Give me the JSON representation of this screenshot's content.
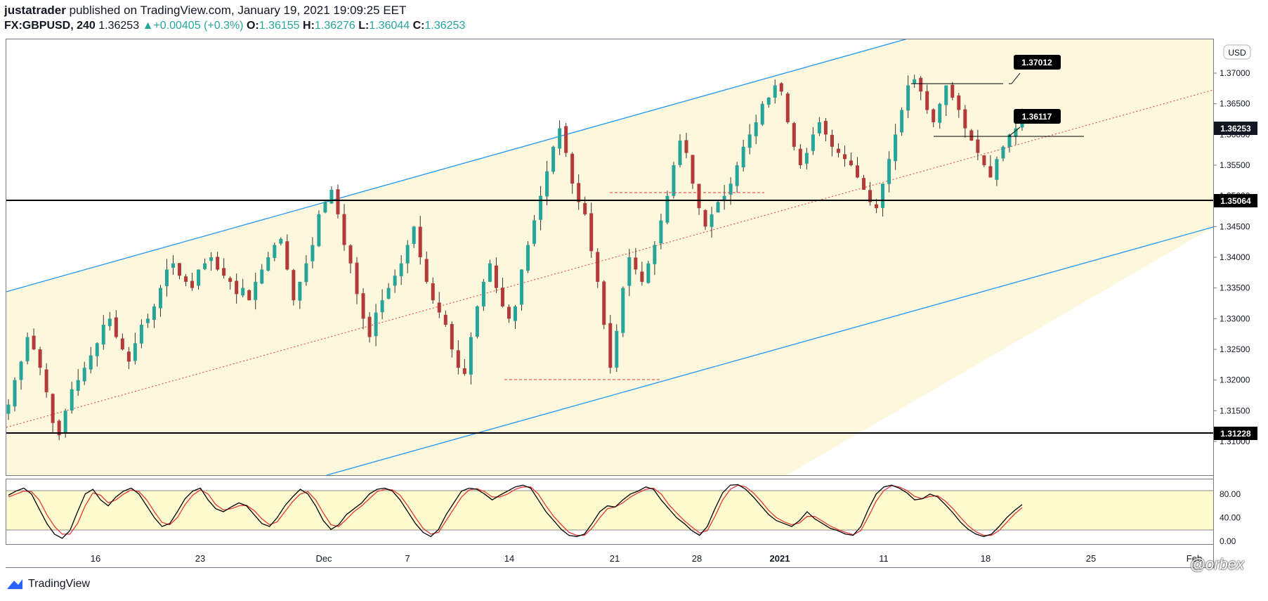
{
  "header": {
    "author": "justatrader",
    "published": "published on TradingView.com, January 19, 2021 19:09:25 EET",
    "symbol": "FX:GBPUSD, 240",
    "last": "1.36253",
    "change_arrow": "▲",
    "change": "+0.00405 (+0.3%)",
    "o_label": "O:",
    "o_val": "1.36155",
    "h_label": "H:",
    "h_val": "1.36276",
    "l_label": "L:",
    "l_val": "1.36044",
    "c_label": "C:",
    "c_val": "1.36253"
  },
  "footer": {
    "brand": "TradingView",
    "corner_mark": "@orbex"
  },
  "colors": {
    "up": "#26a69a",
    "down": "#b43a3a",
    "channel": "#2196f3",
    "channel_fill": "#fdf7de",
    "midline": "#e53935",
    "level": "#000000",
    "stoch_k": "#000000",
    "stoch_d": "#e53935",
    "stoch_band": "#fffbd0"
  },
  "chart_data": [
    {
      "type": "candlestick",
      "currency_label": "USD",
      "y_ticks": [
        "1.37000",
        "1.36500",
        "1.36000",
        "1.35500",
        "1.35000",
        "1.34500",
        "1.34000",
        "1.33500",
        "1.33000",
        "1.32500",
        "1.32000",
        "1.31500",
        "1.31000"
      ],
      "ylim": [
        1.3045,
        1.3755
      ],
      "x_ticks": [
        "16",
        "23",
        "Dec",
        "7",
        "14",
        "21",
        "28",
        "2021",
        "11",
        "18",
        "25",
        "Feb"
      ],
      "price_labels": [
        "1.36253",
        "1.35064",
        "1.31228"
      ],
      "annotations": [
        "1.37012",
        "1.36117"
      ],
      "key_levels": [
        1.35064,
        1.31228
      ],
      "last_price": 1.36253,
      "series": [
        {
          "name": "GBPUSD close (approx.)",
          "values": [
            1.316,
            1.32,
            1.323,
            1.327,
            1.325,
            1.322,
            1.318,
            1.313,
            1.311,
            1.315,
            1.3185,
            1.32,
            1.322,
            1.324,
            1.326,
            1.329,
            1.33,
            1.327,
            1.325,
            1.323,
            1.326,
            1.329,
            1.33,
            1.332,
            1.335,
            1.338,
            1.339,
            1.337,
            1.336,
            1.335,
            1.338,
            1.339,
            1.34,
            1.338,
            1.337,
            1.336,
            1.334,
            1.335,
            1.333,
            1.336,
            1.338,
            1.34,
            1.342,
            1.343,
            1.338,
            1.333,
            1.336,
            1.339,
            1.342,
            1.347,
            1.349,
            1.351,
            1.347,
            1.342,
            1.339,
            1.334,
            1.33,
            1.327,
            1.331,
            1.333,
            1.335,
            1.337,
            1.339,
            1.342,
            1.345,
            1.34,
            1.336,
            1.333,
            1.331,
            1.329,
            1.325,
            1.322,
            1.321,
            1.327,
            1.332,
            1.336,
            1.339,
            1.335,
            1.332,
            1.33,
            1.332,
            1.338,
            1.342,
            1.346,
            1.35,
            1.354,
            1.358,
            1.361,
            1.357,
            1.352,
            1.349,
            1.347,
            1.341,
            1.336,
            1.329,
            1.322,
            1.328,
            1.335,
            1.34,
            1.338,
            1.336,
            1.339,
            1.342,
            1.346,
            1.35,
            1.355,
            1.359,
            1.357,
            1.352,
            1.348,
            1.345,
            1.347,
            1.349,
            1.35,
            1.352,
            1.355,
            1.358,
            1.36,
            1.362,
            1.365,
            1.366,
            1.368,
            1.367,
            1.362,
            1.358,
            1.355,
            1.357,
            1.36,
            1.362,
            1.36,
            1.358,
            1.357,
            1.356,
            1.355,
            1.353,
            1.351,
            1.349,
            1.348,
            1.352,
            1.356,
            1.36,
            1.364,
            1.368,
            1.369,
            1.367,
            1.364,
            1.362,
            1.365,
            1.368,
            1.366,
            1.364,
            1.361,
            1.359,
            1.357,
            1.355,
            1.353,
            1.356,
            1.358,
            1.36,
            1.361,
            1.36253
          ]
        }
      ]
    },
    {
      "type": "line",
      "title": "",
      "y_ticks": [
        "80.00",
        "40.00",
        "0.00"
      ],
      "ylim": [
        0,
        100
      ],
      "bands": [
        20,
        80
      ],
      "series": [
        {
          "name": "%K",
          "values": [
            78,
            85,
            90,
            80,
            55,
            30,
            12,
            5,
            18,
            50,
            80,
            88,
            70,
            60,
            75,
            85,
            90,
            80,
            60,
            40,
            25,
            30,
            50,
            72,
            85,
            90,
            70,
            55,
            50,
            58,
            65,
            60,
            45,
            30,
            25,
            40,
            60,
            75,
            88,
            80,
            60,
            35,
            20,
            28,
            45,
            55,
            65,
            80,
            88,
            90,
            85,
            70,
            50,
            30,
            15,
            8,
            20,
            45,
            65,
            85,
            90,
            88,
            80,
            70,
            78,
            85,
            92,
            95,
            90,
            70,
            50,
            35,
            20,
            10,
            8,
            12,
            30,
            50,
            60,
            58,
            70,
            80,
            85,
            92,
            88,
            70,
            55,
            40,
            30,
            18,
            10,
            25,
            55,
            82,
            95,
            96,
            88,
            75,
            60,
            45,
            35,
            30,
            25,
            35,
            50,
            38,
            30,
            22,
            18,
            12,
            10,
            25,
            55,
            80,
            92,
            95,
            90,
            82,
            70,
            72,
            80,
            75,
            62,
            48,
            32,
            20,
            12,
            8,
            12,
            25,
            40,
            52,
            62
          ]
        },
        {
          "name": "%D",
          "values": [
            75,
            80,
            85,
            84,
            70,
            45,
            25,
            12,
            12,
            30,
            60,
            82,
            78,
            65,
            70,
            80,
            87,
            84,
            70,
            50,
            32,
            28,
            40,
            62,
            78,
            87,
            80,
            62,
            53,
            55,
            60,
            61,
            52,
            38,
            28,
            33,
            50,
            67,
            80,
            84,
            70,
            48,
            28,
            25,
            37,
            50,
            60,
            72,
            84,
            88,
            87,
            78,
            60,
            40,
            22,
            12,
            15,
            35,
            55,
            75,
            87,
            89,
            84,
            75,
            75,
            80,
            88,
            92,
            92,
            80,
            60,
            42,
            28,
            15,
            10,
            10,
            22,
            40,
            55,
            58,
            65,
            75,
            82,
            88,
            90,
            80,
            62,
            48,
            35,
            24,
            14,
            18,
            42,
            70,
            88,
            95,
            92,
            82,
            68,
            52,
            40,
            33,
            28,
            31,
            42,
            42,
            34,
            26,
            20,
            15,
            11,
            18,
            42,
            68,
            86,
            94,
            92,
            86,
            76,
            72,
            76,
            77,
            68,
            55,
            40,
            26,
            16,
            10,
            10,
            18,
            32,
            46,
            57
          ]
        }
      ]
    }
  ]
}
